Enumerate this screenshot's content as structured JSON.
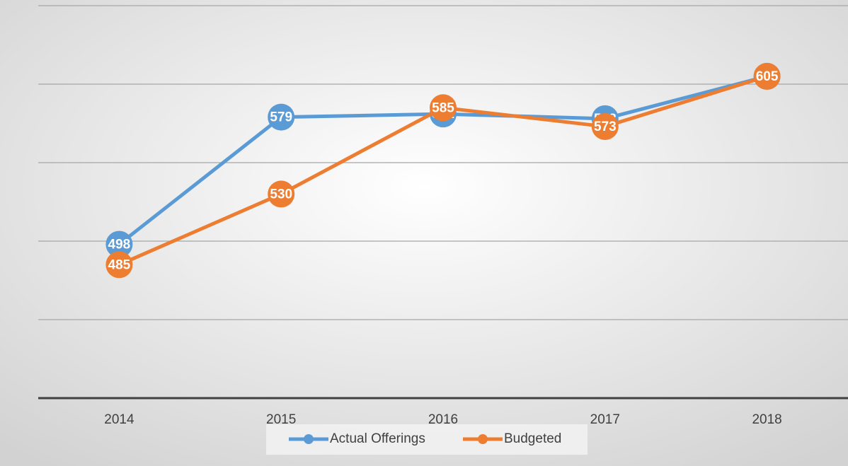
{
  "chart_data": {
    "type": "line",
    "categories": [
      "2014",
      "2015",
      "2016",
      "2017",
      "2018"
    ],
    "series": [
      {
        "name": "Actual Offerings",
        "color": "#5b9bd5",
        "values": [
          498,
          579,
          581,
          578,
          605
        ]
      },
      {
        "name": "Budgeted",
        "color": "#ed7d31",
        "values": [
          485,
          530,
          585,
          573,
          605
        ]
      }
    ],
    "ylim": [
      400,
      650
    ],
    "yticks": [
      400,
      450,
      500,
      550,
      600,
      650
    ],
    "grid": true,
    "legend": "bottom"
  }
}
